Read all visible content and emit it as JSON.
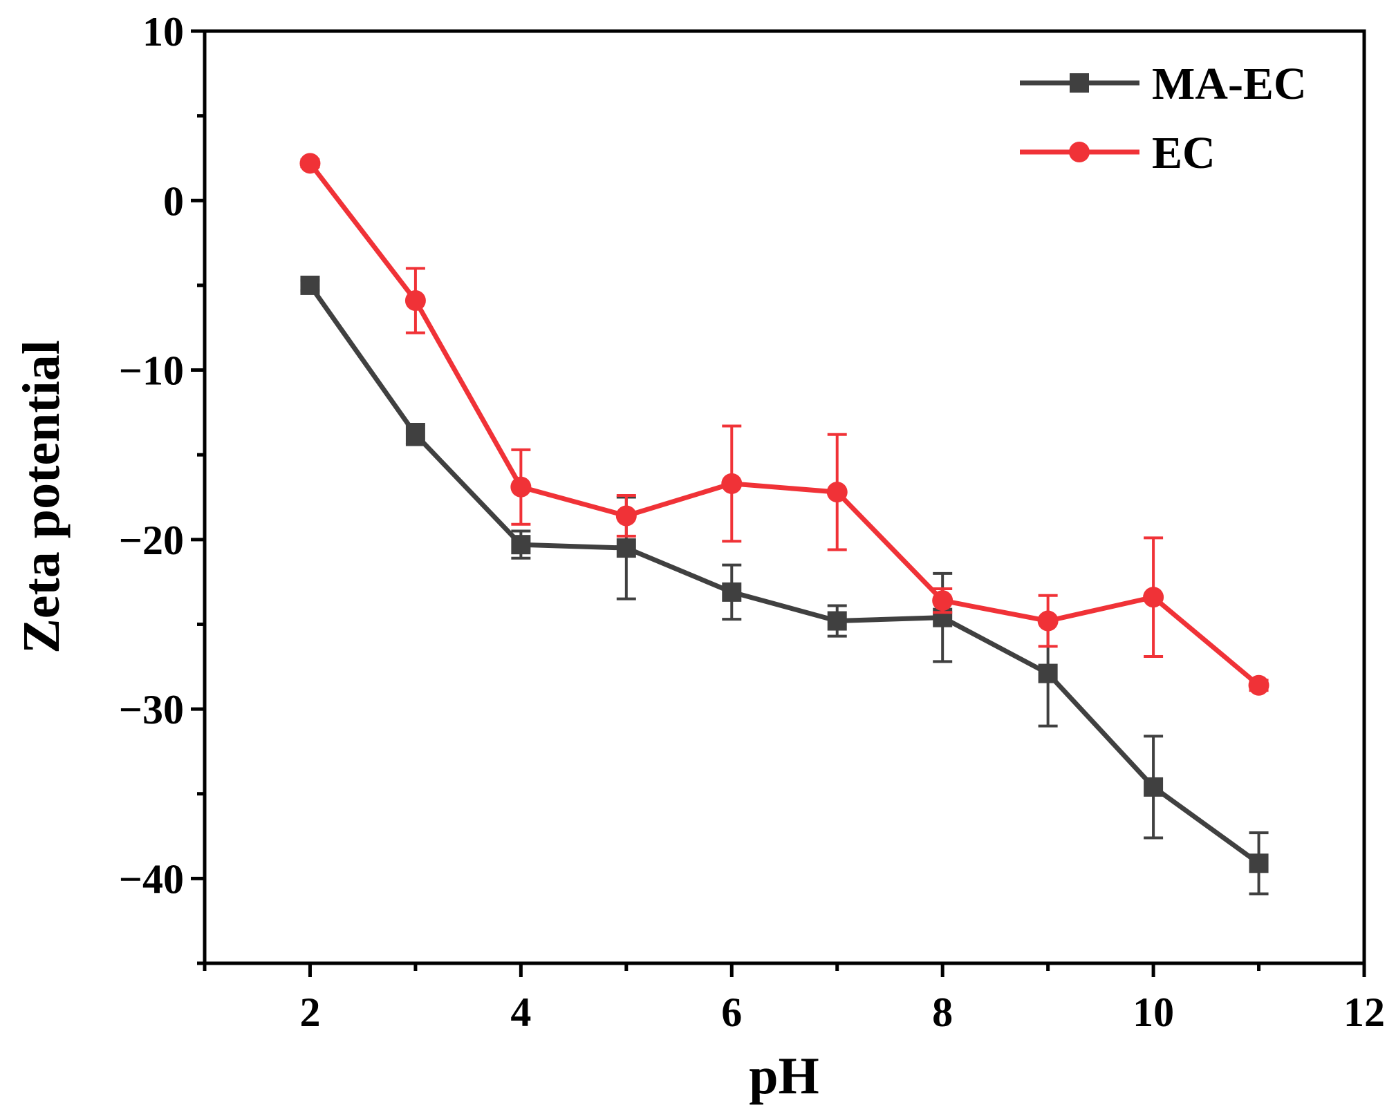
{
  "chart_data": {
    "type": "line",
    "title": "",
    "xlabel": "pH",
    "ylabel": "Zeta potential",
    "xlim": [
      1,
      12
    ],
    "ylim": [
      -45,
      10
    ],
    "xticks": [
      2,
      4,
      6,
      8,
      10,
      12
    ],
    "yticks": [
      10,
      0,
      -10,
      -20,
      -30,
      -40
    ],
    "x_minor_step": 1,
    "y_minor_step": 5,
    "legend_position": "top-right",
    "series": [
      {
        "name": "MA-EC",
        "color": "#404040",
        "marker": "square",
        "x": [
          2,
          3,
          4,
          5,
          6,
          7,
          8,
          9,
          10,
          11
        ],
        "y": [
          -5.0,
          -13.8,
          -20.3,
          -20.5,
          -23.1,
          -24.8,
          -24.6,
          -27.9,
          -34.6,
          -39.1
        ],
        "err": [
          0.3,
          0.6,
          0.8,
          3.0,
          1.6,
          0.9,
          2.6,
          3.1,
          3.0,
          1.8
        ]
      },
      {
        "name": "EC",
        "color": "#f03237",
        "marker": "circle",
        "x": [
          2,
          3,
          4,
          5,
          6,
          7,
          8,
          9,
          10,
          11
        ],
        "y": [
          2.2,
          -5.9,
          -16.9,
          -18.6,
          -16.7,
          -17.2,
          -23.6,
          -24.8,
          -23.4,
          -28.6
        ],
        "err": [
          0.2,
          1.9,
          2.2,
          1.2,
          3.4,
          3.4,
          0.7,
          1.5,
          3.5,
          0.3
        ]
      }
    ]
  }
}
